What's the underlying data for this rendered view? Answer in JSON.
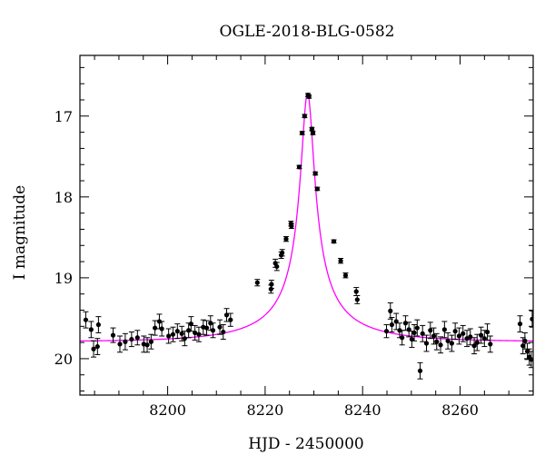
{
  "chart_data": {
    "type": "scatter",
    "title": "OGLE-2018-BLG-0582",
    "xlabel": "HJD - 2450000",
    "ylabel": "I magnitude",
    "xlim": [
      8182,
      8275
    ],
    "ylim": [
      20.45,
      16.25
    ],
    "y_inverted": true,
    "grid": false,
    "x_ticks": [
      8200,
      8220,
      8240,
      8260
    ],
    "x_tick_labels": [
      "8200",
      "8220",
      "8240",
      "8260"
    ],
    "y_ticks": [
      17,
      18,
      19,
      20
    ],
    "y_tick_labels": [
      "17",
      "18",
      "19",
      "20"
    ],
    "colors": {
      "points": "#000000",
      "model": "#ff00ff",
      "frame": "#000000"
    },
    "model": {
      "t0": 8228.7,
      "peak_mag": 16.72,
      "base_mag": 19.79,
      "u0": 0.07,
      "tE": 20
    },
    "series": [
      {
        "points": [
          {
            "x": 8183.2,
            "y": 19.52,
            "e": 0.1
          },
          {
            "x": 8184.3,
            "y": 19.64,
            "e": 0.1
          },
          {
            "x": 8184.8,
            "y": 19.88,
            "e": 0.1
          },
          {
            "x": 8185.6,
            "y": 19.85,
            "e": 0.1
          },
          {
            "x": 8185.8,
            "y": 19.58,
            "e": 0.1
          },
          {
            "x": 8188.8,
            "y": 19.71,
            "e": 0.09
          },
          {
            "x": 8190.2,
            "y": 19.82,
            "e": 0.1
          },
          {
            "x": 8191.3,
            "y": 19.79,
            "e": 0.1
          },
          {
            "x": 8192.6,
            "y": 19.76,
            "e": 0.09
          },
          {
            "x": 8193.8,
            "y": 19.74,
            "e": 0.09
          },
          {
            "x": 8195.1,
            "y": 19.82,
            "e": 0.1
          },
          {
            "x": 8195.8,
            "y": 19.83,
            "e": 0.09
          },
          {
            "x": 8196.6,
            "y": 19.79,
            "e": 0.09
          },
          {
            "x": 8197.4,
            "y": 19.62,
            "e": 0.09
          },
          {
            "x": 8198.3,
            "y": 19.54,
            "e": 0.09
          },
          {
            "x": 8198.8,
            "y": 19.63,
            "e": 0.09
          },
          {
            "x": 8200.2,
            "y": 19.72,
            "e": 0.09
          },
          {
            "x": 8201.1,
            "y": 19.7,
            "e": 0.09
          },
          {
            "x": 8202.0,
            "y": 19.66,
            "e": 0.09
          },
          {
            "x": 8202.9,
            "y": 19.69,
            "e": 0.09
          },
          {
            "x": 8203.5,
            "y": 19.75,
            "e": 0.09
          },
          {
            "x": 8204.3,
            "y": 19.65,
            "e": 0.09
          },
          {
            "x": 8204.8,
            "y": 19.57,
            "e": 0.09
          },
          {
            "x": 8205.6,
            "y": 19.68,
            "e": 0.09
          },
          {
            "x": 8206.4,
            "y": 19.7,
            "e": 0.09
          },
          {
            "x": 8207.3,
            "y": 19.61,
            "e": 0.09
          },
          {
            "x": 8208.0,
            "y": 19.62,
            "e": 0.09
          },
          {
            "x": 8208.8,
            "y": 19.56,
            "e": 0.09
          },
          {
            "x": 8209.3,
            "y": 19.65,
            "e": 0.09
          },
          {
            "x": 8210.7,
            "y": 19.61,
            "e": 0.09
          },
          {
            "x": 8211.4,
            "y": 19.67,
            "e": 0.09
          },
          {
            "x": 8212.1,
            "y": 19.46,
            "e": 0.08
          },
          {
            "x": 8212.9,
            "y": 19.52,
            "e": 0.08
          },
          {
            "x": 8218.4,
            "y": 19.06,
            "e": 0.04
          },
          {
            "x": 8221.2,
            "y": 19.14,
            "e": 0.05
          },
          {
            "x": 8221.3,
            "y": 19.08,
            "e": 0.05
          },
          {
            "x": 8222.1,
            "y": 18.82,
            "e": 0.05
          },
          {
            "x": 8222.4,
            "y": 18.86,
            "e": 0.05
          },
          {
            "x": 8223.3,
            "y": 18.72,
            "e": 0.04
          },
          {
            "x": 8223.5,
            "y": 18.69,
            "e": 0.04
          },
          {
            "x": 8224.3,
            "y": 18.52,
            "e": 0.03
          },
          {
            "x": 8225.3,
            "y": 18.33,
            "e": 0.03
          },
          {
            "x": 8225.4,
            "y": 18.36,
            "e": 0.03
          },
          {
            "x": 8227.0,
            "y": 17.63,
            "e": 0.02
          },
          {
            "x": 8227.6,
            "y": 17.21,
            "e": 0.02
          },
          {
            "x": 8228.1,
            "y": 17.0,
            "e": 0.02
          },
          {
            "x": 8228.8,
            "y": 16.74,
            "e": 0.02
          },
          {
            "x": 8229.0,
            "y": 16.76,
            "e": 0.02
          },
          {
            "x": 8229.6,
            "y": 17.16,
            "e": 0.02
          },
          {
            "x": 8229.8,
            "y": 17.21,
            "e": 0.02
          },
          {
            "x": 8230.3,
            "y": 17.71,
            "e": 0.02
          },
          {
            "x": 8230.7,
            "y": 17.9,
            "e": 0.02
          },
          {
            "x": 8234.1,
            "y": 18.55,
            "e": 0.02
          },
          {
            "x": 8235.5,
            "y": 18.79,
            "e": 0.03
          },
          {
            "x": 8236.5,
            "y": 18.97,
            "e": 0.03
          },
          {
            "x": 8238.7,
            "y": 19.17,
            "e": 0.05
          },
          {
            "x": 8238.9,
            "y": 19.27,
            "e": 0.05
          },
          {
            "x": 8244.9,
            "y": 19.66,
            "e": 0.08
          },
          {
            "x": 8245.7,
            "y": 19.41,
            "e": 0.1
          },
          {
            "x": 8246.0,
            "y": 19.58,
            "e": 0.09
          },
          {
            "x": 8246.9,
            "y": 19.54,
            "e": 0.1
          },
          {
            "x": 8247.6,
            "y": 19.65,
            "e": 0.09
          },
          {
            "x": 8248.1,
            "y": 19.74,
            "e": 0.09
          },
          {
            "x": 8248.8,
            "y": 19.56,
            "e": 0.09
          },
          {
            "x": 8249.5,
            "y": 19.64,
            "e": 0.09
          },
          {
            "x": 8250.1,
            "y": 19.76,
            "e": 0.1
          },
          {
            "x": 8250.6,
            "y": 19.68,
            "e": 0.1
          },
          {
            "x": 8251.2,
            "y": 19.62,
            "e": 0.1
          },
          {
            "x": 8251.8,
            "y": 20.15,
            "e": 0.1
          },
          {
            "x": 8252.3,
            "y": 19.69,
            "e": 0.1
          },
          {
            "x": 8253.1,
            "y": 19.81,
            "e": 0.1
          },
          {
            "x": 8253.9,
            "y": 19.65,
            "e": 0.1
          },
          {
            "x": 8254.6,
            "y": 19.72,
            "e": 0.1
          },
          {
            "x": 8255.2,
            "y": 19.79,
            "e": 0.1
          },
          {
            "x": 8256.0,
            "y": 19.83,
            "e": 0.1
          },
          {
            "x": 8256.8,
            "y": 19.64,
            "e": 0.1
          },
          {
            "x": 8257.5,
            "y": 19.78,
            "e": 0.1
          },
          {
            "x": 8258.3,
            "y": 19.81,
            "e": 0.1
          },
          {
            "x": 8259.0,
            "y": 19.66,
            "e": 0.1
          },
          {
            "x": 8259.8,
            "y": 19.72,
            "e": 0.1
          },
          {
            "x": 8260.6,
            "y": 19.69,
            "e": 0.1
          },
          {
            "x": 8261.4,
            "y": 19.75,
            "e": 0.1
          },
          {
            "x": 8262.1,
            "y": 19.73,
            "e": 0.1
          },
          {
            "x": 8262.9,
            "y": 19.84,
            "e": 0.1
          },
          {
            "x": 8263.5,
            "y": 19.8,
            "e": 0.1
          },
          {
            "x": 8264.3,
            "y": 19.71,
            "e": 0.1
          },
          {
            "x": 8265.0,
            "y": 19.75,
            "e": 0.1
          },
          {
            "x": 8265.6,
            "y": 19.67,
            "e": 0.1
          },
          {
            "x": 8266.2,
            "y": 19.82,
            "e": 0.1
          },
          {
            "x": 8272.3,
            "y": 19.57,
            "e": 0.1
          },
          {
            "x": 8272.9,
            "y": 19.84,
            "e": 0.1
          },
          {
            "x": 8273.3,
            "y": 19.78,
            "e": 0.1
          },
          {
            "x": 8273.8,
            "y": 19.91,
            "e": 0.1
          },
          {
            "x": 8274.2,
            "y": 19.98,
            "e": 0.1
          },
          {
            "x": 8274.6,
            "y": 20.01,
            "e": 0.1
          },
          {
            "x": 8274.8,
            "y": 19.51,
            "e": 0.1
          }
        ]
      }
    ]
  }
}
